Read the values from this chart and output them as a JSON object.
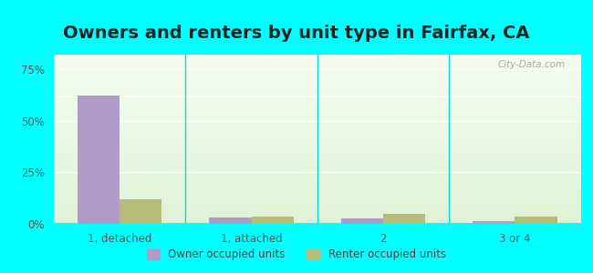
{
  "title": "Owners and renters by unit type in Fairfax, CA",
  "categories": [
    "1, detached",
    "1, attached",
    "2",
    "3 or 4"
  ],
  "owner_values": [
    62,
    3.0,
    2.5,
    1.5
  ],
  "renter_values": [
    12,
    3.5,
    5.0,
    3.5
  ],
  "owner_color": "#b09cc8",
  "renter_color": "#b5bc7a",
  "yticks": [
    0,
    25,
    50,
    75
  ],
  "ytick_labels": [
    "0%",
    "25%",
    "50%",
    "75%"
  ],
  "ylim": [
    0,
    82
  ],
  "background_outer": "#00ffff",
  "legend_owner": "Owner occupied units",
  "legend_renter": "Renter occupied units",
  "title_fontsize": 14,
  "bar_width": 0.32,
  "watermark": "City-Data.com"
}
